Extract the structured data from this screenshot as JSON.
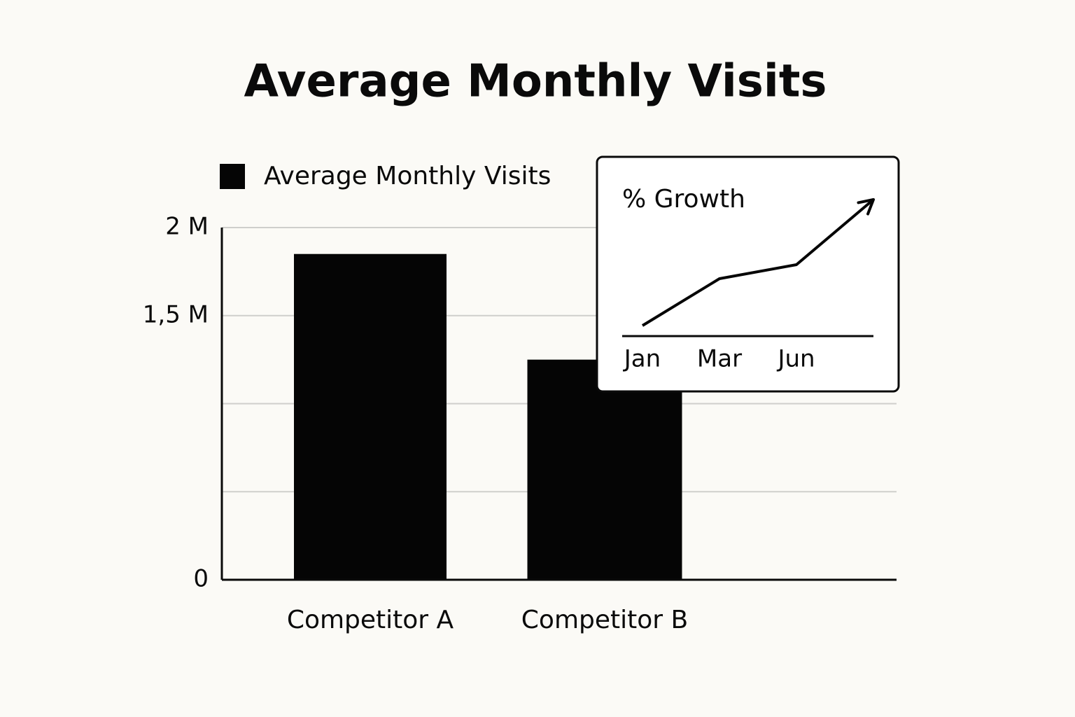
{
  "chart_data": [
    {
      "type": "bar",
      "title": "Average Monthly Visits",
      "categories": [
        "Competitor A",
        "Competitor B"
      ],
      "series": [
        {
          "name": "Average Monthly Visits",
          "color": "#050505",
          "values": [
            1850000,
            1250000
          ]
        }
      ],
      "ylim": [
        0,
        2000000
      ],
      "yticks": [
        0,
        {
          "value": 500000,
          "label": null
        },
        {
          "value": 1000000,
          "label": null
        },
        {
          "value": 1500000,
          "label": "1,5 M"
        },
        {
          "value": 2000000,
          "label": "2 M"
        }
      ],
      "grid": true,
      "legend": "top-left"
    },
    {
      "type": "line",
      "title": "% Growth",
      "categories": [
        "Jan",
        "Mar",
        "Jun",
        null
      ],
      "series": [
        {
          "color": "#050505",
          "values": [
            7.5,
            41,
            51,
            97.5
          ]
        }
      ],
      "ylim": [
        0,
        100
      ],
      "arrow": true
    }
  ]
}
